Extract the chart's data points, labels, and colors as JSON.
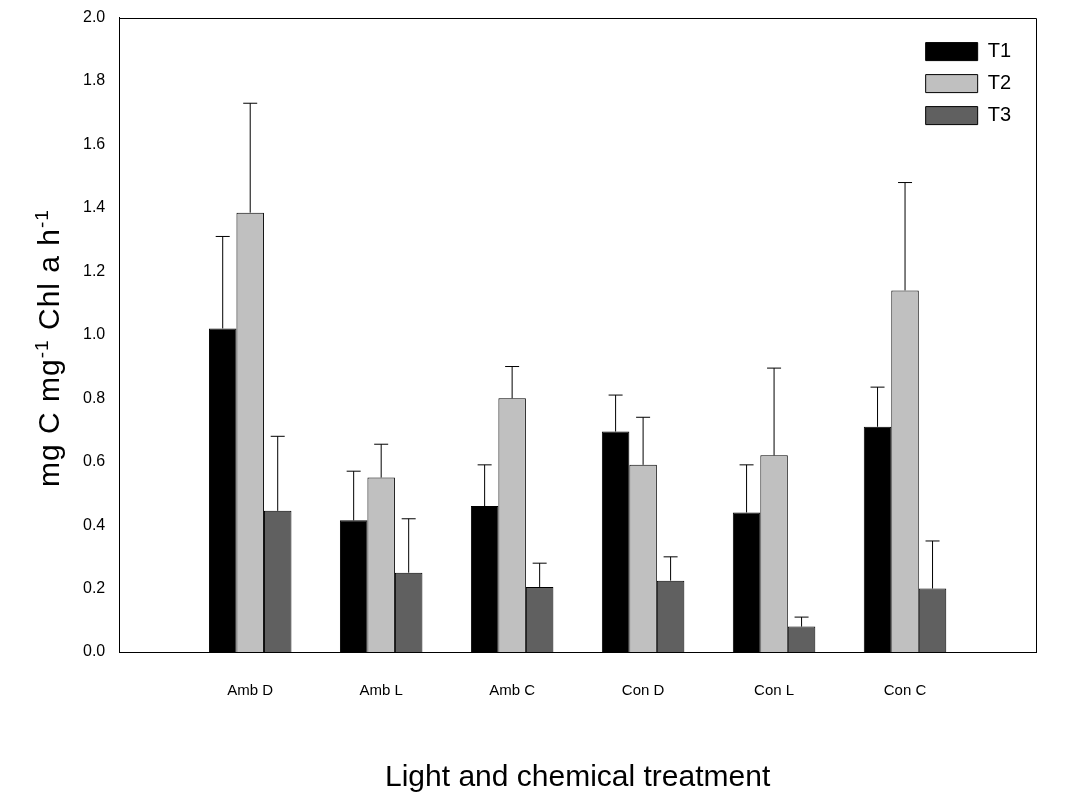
{
  "chart_data": {
    "type": "bar",
    "xlabel": "Light and chemical treatment",
    "ylabel": "mg C mg$^{-1}$ Chl a h$^{-1}$",
    "categories": [
      "Amb D",
      "Amb L",
      "Amb C",
      "Con D",
      "Con L",
      "Con C"
    ],
    "series": [
      {
        "name": "T1",
        "color": "#000000",
        "values": [
          1.02,
          0.415,
          0.46,
          0.695,
          0.44,
          0.71
        ],
        "errors": [
          [
            1.02,
            1.31
          ],
          [
            0.415,
            0.57
          ],
          [
            0.46,
            0.59
          ],
          [
            0.695,
            0.81
          ],
          [
            0.44,
            0.59
          ],
          [
            0.71,
            0.835
          ]
        ]
      },
      {
        "name": "T2",
        "color": "#c0c0c0",
        "values": [
          1.385,
          0.55,
          0.8,
          0.59,
          0.62,
          1.14
        ],
        "errors": [
          [
            1.385,
            1.73
          ],
          [
            0.55,
            0.655
          ],
          [
            0.8,
            0.9
          ],
          [
            0.59,
            0.74
          ],
          [
            0.62,
            0.895
          ],
          [
            1.14,
            1.48
          ]
        ]
      },
      {
        "name": "T3",
        "color": "#606060",
        "values": [
          0.445,
          0.25,
          0.205,
          0.225,
          0.08,
          0.2
        ],
        "errors": [
          [
            0.445,
            0.68
          ],
          [
            0.25,
            0.42
          ],
          [
            0.205,
            0.28
          ],
          [
            0.225,
            0.3
          ],
          [
            0.08,
            0.11
          ],
          [
            0.2,
            0.35
          ]
        ]
      }
    ],
    "ylim": [
      0,
      2.0
    ],
    "yticks": [
      {
        "value": 0,
        "label": "0.0"
      },
      {
        "value": 0.2,
        "label": "0.2"
      },
      {
        "value": 0.4,
        "label": "0.4"
      },
      {
        "value": 0.6,
        "label": "0.6"
      },
      {
        "value": 0.8,
        "label": "0.8"
      },
      {
        "value": 1.0,
        "label": "1.0"
      },
      {
        "value": 1.2,
        "label": "1.2"
      },
      {
        "value": 1.4,
        "label": "1.4"
      },
      {
        "value": 1.6,
        "label": "1.6"
      },
      {
        "value": 1.8,
        "label": "1.8"
      },
      {
        "value": 2.0,
        "label": "2.0"
      }
    ],
    "grid": false,
    "legend": "top right"
  }
}
